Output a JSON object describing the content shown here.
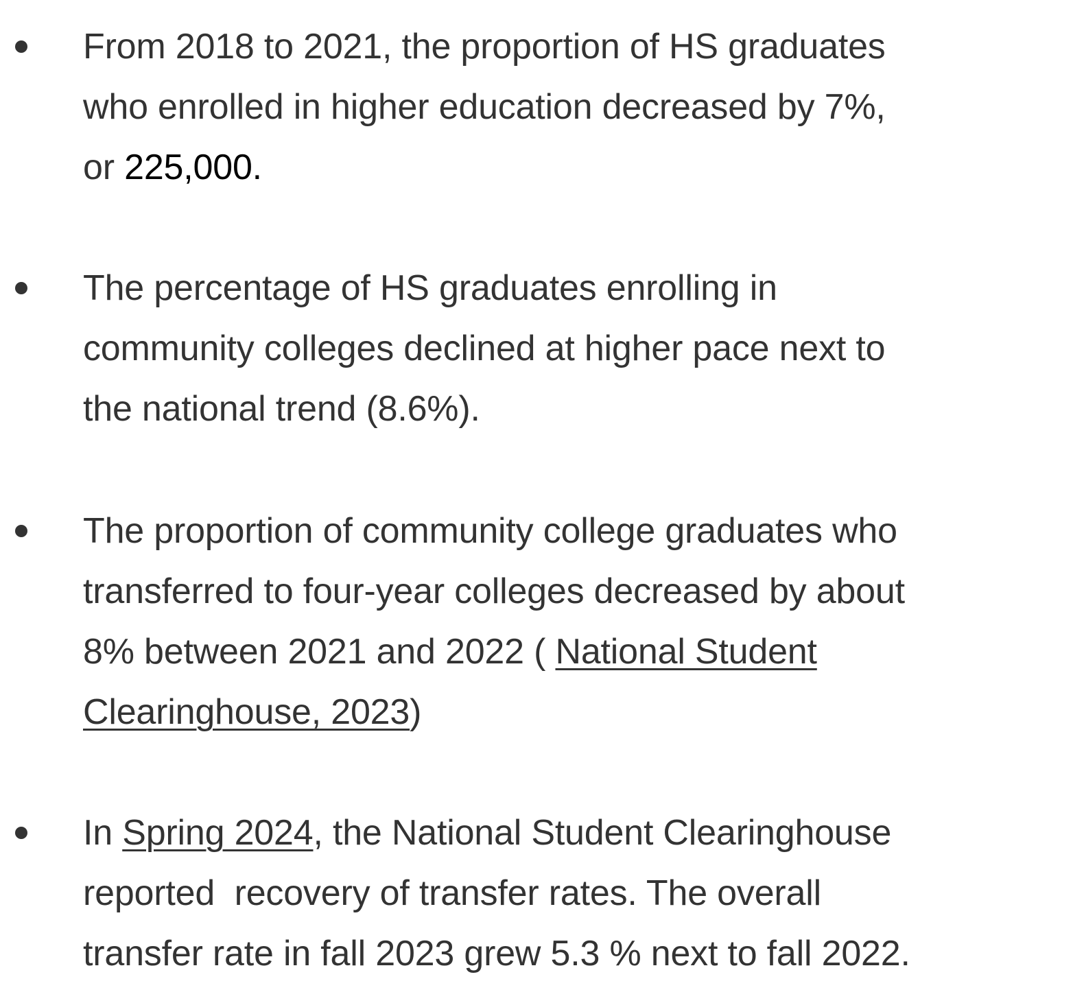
{
  "bullets": [
    {
      "line1": "From 2018 to 2021, the proportion of HS graduates",
      "line2": "who enrolled in higher education decreased by 7%,",
      "line3_prefix": "or ",
      "line3_value": "225,000",
      "line3_suffix": "."
    },
    {
      "line1": "The percentage of HS graduates enrolling in",
      "line2": "community colleges declined at higher pace next to",
      "line3": "the national trend (8.6%)."
    },
    {
      "line1": "The proportion of community college graduates who",
      "line2": "transferred to four-year colleges decreased by about",
      "line3_prefix": "8% between 2021 and 2022 ( ",
      "link_part1": "National Student",
      "link_part2": "Clearinghouse, 2023",
      "line4_suffix": ")"
    },
    {
      "line1_prefix": "In ",
      "line1_link": "Spring 2024",
      "line1_suffix": ", the National Student Clearinghouse",
      "line2": "reported  recovery of transfer rates. The overall",
      "line3": "transfer rate in fall 2023 grew 5.3 % next to fall 2022."
    }
  ]
}
